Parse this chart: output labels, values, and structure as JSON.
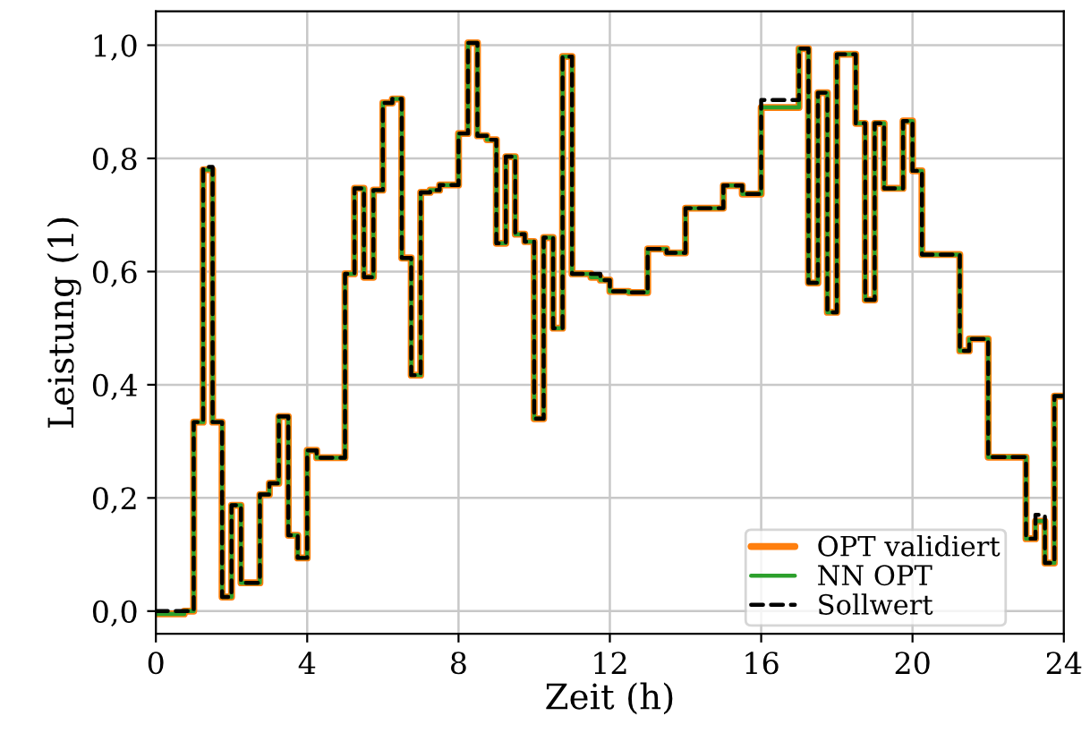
{
  "chart_data": {
    "type": "step",
    "xlabel": "Zeit (h)",
    "ylabel": "Leistung (1)",
    "x": [
      0,
      0.75,
      1,
      1.25,
      1.5,
      1.75,
      2,
      2.25,
      2.75,
      3,
      3.25,
      3.5,
      3.75,
      4,
      4.25,
      5,
      5.25,
      5.5,
      5.75,
      6,
      6.25,
      6.5,
      6.75,
      7,
      7.25,
      7.5,
      8,
      8.25,
      8.5,
      8.75,
      9,
      9.25,
      9.5,
      9.75,
      10,
      10.25,
      10.5,
      10.75,
      11,
      11.5,
      11.75,
      12,
      12.5,
      13,
      13.5,
      14,
      15,
      15.5,
      16,
      17,
      17.25,
      17.5,
      17.75,
      18,
      18.5,
      18.75,
      19,
      19.25,
      19.75,
      20,
      20.25,
      21.25,
      21.5,
      22,
      23,
      23.25,
      23.5,
      23.75,
      24
    ],
    "series": [
      {
        "name": "OPT validiert",
        "color": "#ff7f0e",
        "values": [
          -0.005,
          0.0,
          0.334,
          0.78,
          0.334,
          0.025,
          0.187,
          0.05,
          0.206,
          0.226,
          0.344,
          0.134,
          0.094,
          0.284,
          0.271,
          0.596,
          0.747,
          0.59,
          0.744,
          0.898,
          0.905,
          0.624,
          0.417,
          0.74,
          0.744,
          0.753,
          0.844,
          1.004,
          0.84,
          0.833,
          0.65,
          0.803,
          0.666,
          0.653,
          0.34,
          0.66,
          0.5,
          0.98,
          0.596,
          0.59,
          0.585,
          0.565,
          0.563,
          0.64,
          0.633,
          0.712,
          0.752,
          0.737,
          0.89,
          0.994,
          0.58,
          0.916,
          0.528,
          0.984,
          0.862,
          0.55,
          0.862,
          0.747,
          0.866,
          0.778,
          0.63,
          0.46,
          0.481,
          0.272,
          0.128,
          0.159,
          0.085,
          0.38,
          0.38
        ]
      },
      {
        "name": "NN OPT",
        "color": "#2ca02c",
        "values": [
          -0.005,
          0.0,
          0.334,
          0.78,
          0.334,
          0.025,
          0.187,
          0.05,
          0.206,
          0.226,
          0.344,
          0.134,
          0.094,
          0.284,
          0.271,
          0.596,
          0.747,
          0.59,
          0.744,
          0.898,
          0.905,
          0.624,
          0.417,
          0.74,
          0.744,
          0.753,
          0.844,
          1.004,
          0.84,
          0.833,
          0.65,
          0.803,
          0.666,
          0.653,
          0.34,
          0.66,
          0.5,
          0.98,
          0.596,
          0.59,
          0.585,
          0.565,
          0.563,
          0.64,
          0.633,
          0.712,
          0.752,
          0.737,
          0.89,
          0.994,
          0.58,
          0.916,
          0.528,
          0.984,
          0.862,
          0.55,
          0.862,
          0.747,
          0.866,
          0.778,
          0.63,
          0.46,
          0.481,
          0.272,
          0.128,
          0.159,
          0.085,
          0.38,
          0.38
        ]
      },
      {
        "name": "Sollwert",
        "color": "#000000",
        "line_style": "dashed",
        "values": [
          0.0,
          0.0,
          0.334,
          0.785,
          0.334,
          0.025,
          0.187,
          0.05,
          0.206,
          0.226,
          0.344,
          0.134,
          0.094,
          0.284,
          0.271,
          0.596,
          0.747,
          0.59,
          0.744,
          0.898,
          0.905,
          0.624,
          0.417,
          0.74,
          0.744,
          0.753,
          0.844,
          1.004,
          0.84,
          0.833,
          0.65,
          0.803,
          0.666,
          0.653,
          0.34,
          0.66,
          0.5,
          0.98,
          0.596,
          0.596,
          0.585,
          0.565,
          0.563,
          0.64,
          0.633,
          0.712,
          0.752,
          0.737,
          0.903,
          0.994,
          0.58,
          0.916,
          0.528,
          0.984,
          0.862,
          0.55,
          0.862,
          0.747,
          0.866,
          0.778,
          0.63,
          0.46,
          0.481,
          0.272,
          0.128,
          0.17,
          0.085,
          0.38,
          0.38
        ]
      }
    ],
    "xlim": [
      0,
      24
    ],
    "xticks": [
      0,
      4,
      8,
      12,
      16,
      20,
      24
    ],
    "ylim": [
      -0.04,
      1.06
    ],
    "yticks": [
      {
        "value": 0.0,
        "label": "0,0"
      },
      {
        "value": 0.2,
        "label": "0,2"
      },
      {
        "value": 0.4,
        "label": "0,4"
      },
      {
        "value": 0.6,
        "label": "0,6"
      },
      {
        "value": 0.8,
        "label": "0,8"
      },
      {
        "value": 1.0,
        "label": "1,0"
      }
    ],
    "grid": true,
    "legend": "bottom right"
  }
}
